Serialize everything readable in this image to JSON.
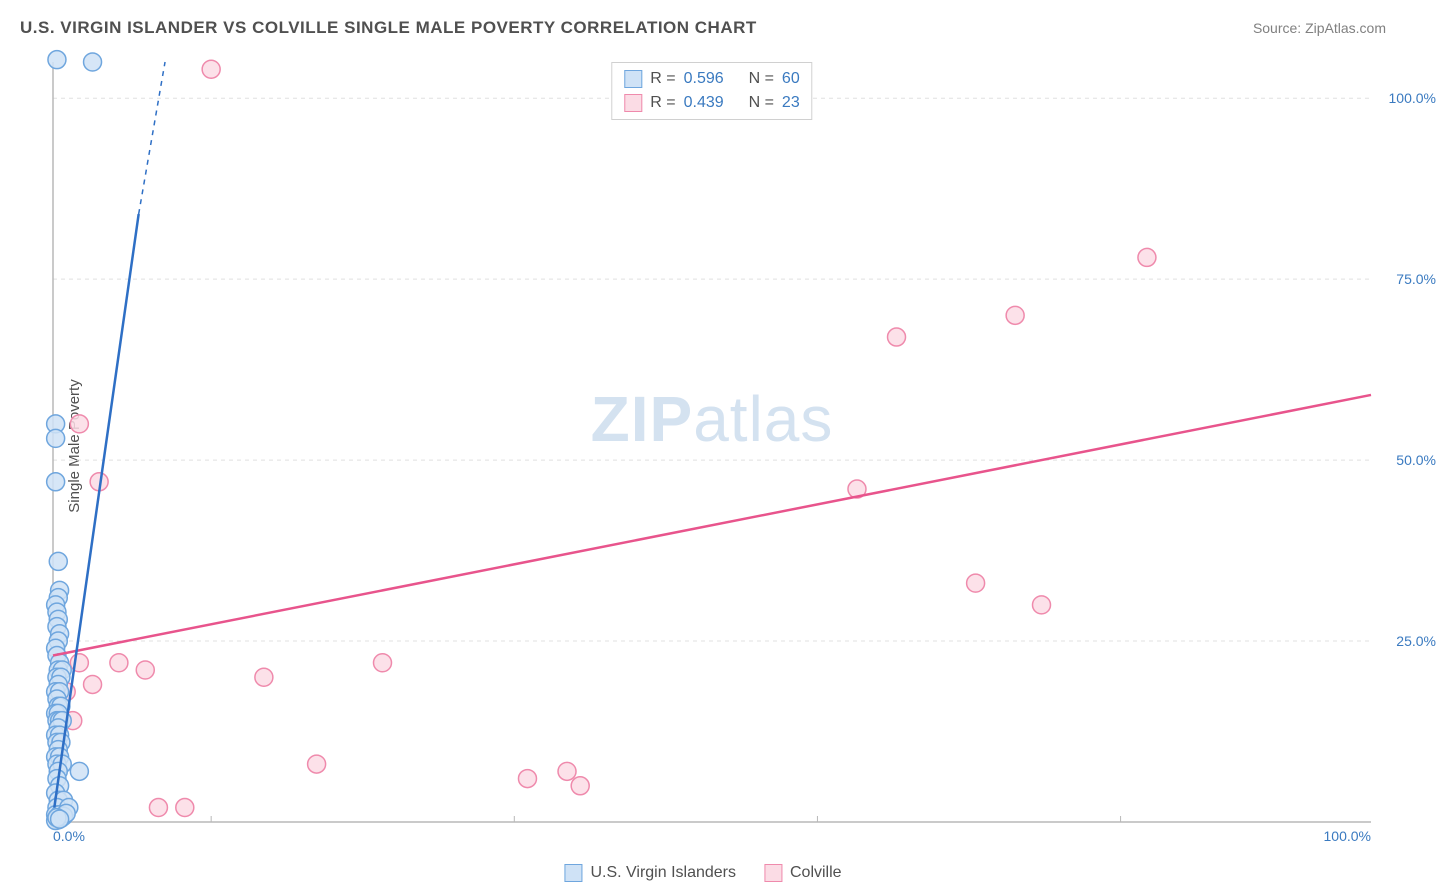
{
  "title": "U.S. VIRGIN ISLANDER VS COLVILLE SINGLE MALE POVERTY CORRELATION CHART",
  "source_label": "Source: ZipAtlas.com",
  "y_axis_label": "Single Male Poverty",
  "watermark": {
    "a": "ZIP",
    "b": "atlas"
  },
  "chart": {
    "type": "scatter",
    "xlim": [
      0,
      100
    ],
    "ylim": [
      0,
      105
    ],
    "x_ticks": [
      0,
      100
    ],
    "x_tick_labels": [
      "0.0%",
      "100.0%"
    ],
    "x_minor_ticks": [
      12,
      35,
      58,
      81
    ],
    "y_ticks": [
      25,
      50,
      75,
      100
    ],
    "y_tick_labels": [
      "25.0%",
      "50.0%",
      "75.0%",
      "100.0%"
    ],
    "background_color": "#ffffff",
    "grid_color": "#e0e0e0",
    "axis_color": "#b8b8b8",
    "marker_radius": 9,
    "marker_stroke_width": 1.5,
    "trend_line_width": 2.5,
    "series": [
      {
        "name": "U.S. Virgin Islanders",
        "fill": "#cfe2f6",
        "stroke": "#6fa6de",
        "line_color": "#2e6fc5",
        "R": "0.596",
        "N": "60",
        "trend": {
          "x1": 0.1,
          "y1": 2,
          "x2": 6.5,
          "y2": 84,
          "dash_from_y": 84,
          "ext_x2": 8.5,
          "ext_y2": 105
        },
        "points": [
          [
            0.3,
            105.32
          ],
          [
            0.2,
            55
          ],
          [
            0.2,
            53
          ],
          [
            0.2,
            47
          ],
          [
            0.4,
            36
          ],
          [
            0.5,
            32
          ],
          [
            0.4,
            31
          ],
          [
            0.2,
            30
          ],
          [
            0.3,
            29
          ],
          [
            0.4,
            28
          ],
          [
            0.3,
            27
          ],
          [
            0.5,
            26
          ],
          [
            0.4,
            25
          ],
          [
            0.2,
            24
          ],
          [
            0.3,
            23
          ],
          [
            0.5,
            22
          ],
          [
            0.4,
            21
          ],
          [
            0.7,
            21
          ],
          [
            0.3,
            20
          ],
          [
            0.6,
            20
          ],
          [
            0.4,
            19
          ],
          [
            0.2,
            18
          ],
          [
            0.5,
            18
          ],
          [
            0.3,
            17
          ],
          [
            0.4,
            16
          ],
          [
            0.6,
            16
          ],
          [
            0.2,
            15
          ],
          [
            0.4,
            15
          ],
          [
            0.3,
            14
          ],
          [
            0.5,
            14
          ],
          [
            0.7,
            14
          ],
          [
            0.4,
            13
          ],
          [
            0.2,
            12
          ],
          [
            0.5,
            12
          ],
          [
            0.3,
            11
          ],
          [
            0.6,
            11
          ],
          [
            0.4,
            10
          ],
          [
            0.2,
            9
          ],
          [
            0.5,
            9
          ],
          [
            0.3,
            8
          ],
          [
            0.7,
            8
          ],
          [
            0.4,
            7
          ],
          [
            2.0,
            7
          ],
          [
            0.3,
            6
          ],
          [
            0.5,
            5
          ],
          [
            0.2,
            4
          ],
          [
            0.4,
            3
          ],
          [
            0.8,
            3
          ],
          [
            0.3,
            2
          ],
          [
            1.2,
            2
          ],
          [
            0.2,
            1
          ],
          [
            0.5,
            1
          ],
          [
            3,
            105
          ],
          [
            0.6,
            0.5
          ],
          [
            0.4,
            0.3
          ],
          [
            0.2,
            0.2
          ],
          [
            0.8,
            0.8
          ],
          [
            1.0,
            1.2
          ],
          [
            0.3,
            0.6
          ],
          [
            0.5,
            0.4
          ]
        ]
      },
      {
        "name": "Colville",
        "fill": "#fbdce5",
        "stroke": "#ef8aac",
        "line_color": "#e8548c",
        "R": "0.439",
        "N": "23",
        "trend": {
          "x1": 0,
          "y1": 23,
          "x2": 100,
          "y2": 59
        },
        "points": [
          [
            12,
            104
          ],
          [
            2,
            55
          ],
          [
            3.5,
            47
          ],
          [
            61,
            46
          ],
          [
            70,
            33
          ],
          [
            75,
            30
          ],
          [
            64,
            67
          ],
          [
            73,
            70
          ],
          [
            83,
            78
          ],
          [
            16,
            20
          ],
          [
            25,
            22
          ],
          [
            20,
            8
          ],
          [
            2,
            22
          ],
          [
            5,
            22
          ],
          [
            7,
            21
          ],
          [
            3,
            19
          ],
          [
            1,
            18
          ],
          [
            1.5,
            14
          ],
          [
            36,
            6
          ],
          [
            39,
            7
          ],
          [
            40,
            5
          ],
          [
            8,
            2
          ],
          [
            10,
            2
          ]
        ]
      }
    ]
  },
  "legend_top": {
    "R_label": "R =",
    "N_label": "N ="
  },
  "legend_bottom": {
    "items": [
      "U.S. Virgin Islanders",
      "Colville"
    ]
  }
}
